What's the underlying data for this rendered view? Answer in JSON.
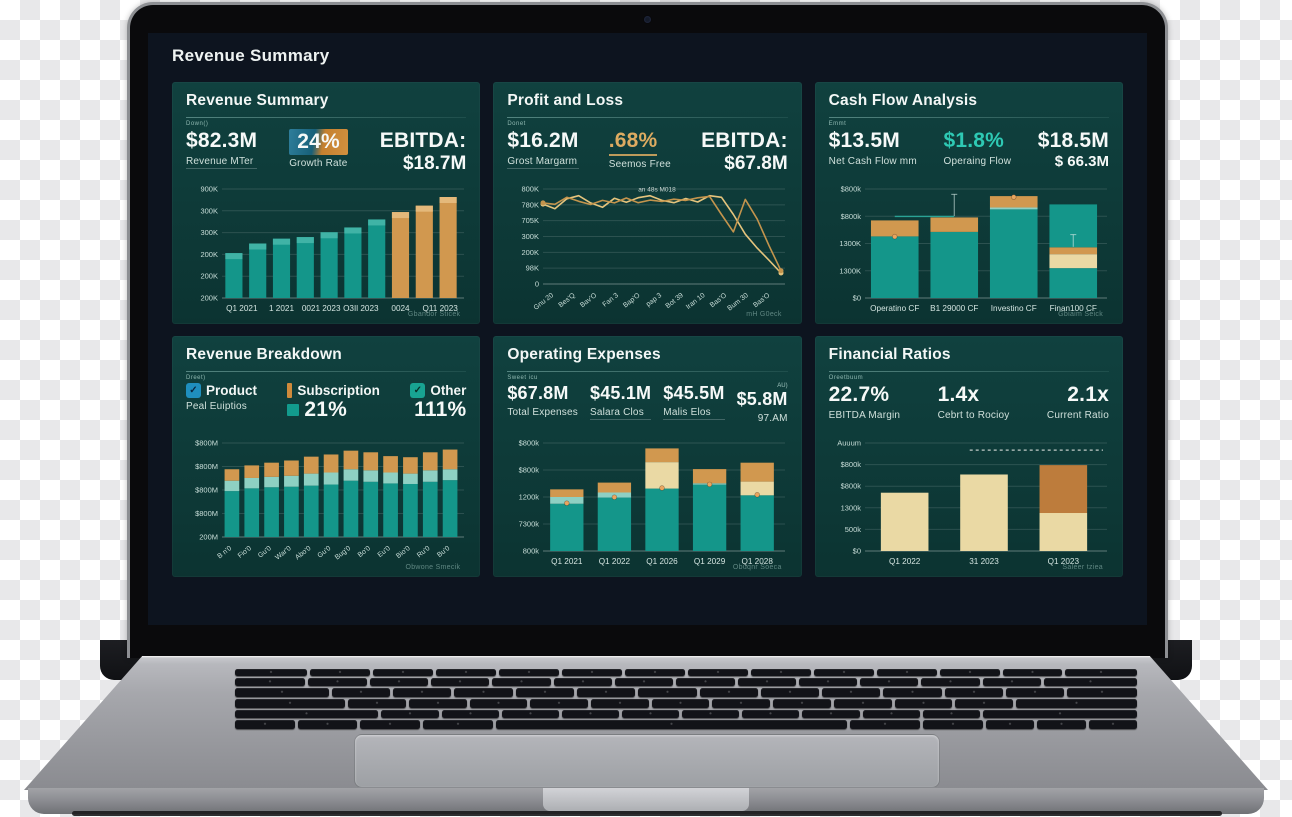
{
  "page": {
    "title": "Revenue Summary"
  },
  "colors": {
    "teal": "#14968a",
    "teal_light": "#8ed0c3",
    "orange": "#d1984f",
    "cream": "#ead9a4",
    "dark_orange": "#bd7c3c",
    "gold_line": "#e5c47d",
    "dark_gold_line": "#c3944d",
    "accent_teal": "#2ec9b4",
    "accent_gold": "#ddab61",
    "panel_bg": "#0d3836",
    "screen_bg": "#0d141f"
  },
  "panels": [
    {
      "title": "Revenue Summary",
      "tiny_label": "Down()",
      "watermark": "Gbandor Sticek",
      "metrics": [
        {
          "value": "$82.3M",
          "label": "Revenue MTer",
          "label_underline": true
        },
        {
          "value": "24%",
          "value_class": "badge",
          "label": "Growth Rate"
        },
        {
          "value": "EBITDA:",
          "value2": "$18.7M"
        }
      ],
      "chart": {
        "type": "bar",
        "ymax": 340,
        "yticks": [
          "900K",
          "300K",
          "300K",
          "200K",
          "200K",
          "200K"
        ],
        "xlabels": [
          "Q1 2021",
          "1 2021",
          "0021 2023",
          "O3Il 2023",
          "0024",
          "Q11 2023"
        ],
        "values": [
          140,
          170,
          185,
          190,
          205,
          220,
          245,
          268,
          288,
          315
        ],
        "bar_colors": [
          "teal",
          "teal",
          "teal",
          "teal",
          "teal",
          "teal",
          "teal",
          "orange",
          "orange",
          "orange"
        ]
      }
    },
    {
      "title": "Profit and Loss",
      "tiny_label": "Donet",
      "watermark": "mH G0eck",
      "metrics": [
        {
          "value": "$16.2M",
          "label": "Grost Margarm",
          "label_underline": true
        },
        {
          "value": ".68%",
          "value_class": "gold underl",
          "label": "Seemos Free"
        },
        {
          "value": "EBITDA:",
          "value2": "$67.8M"
        }
      ],
      "chart": {
        "type": "line",
        "ymax": 820,
        "xrot": true,
        "yticks": [
          "800K",
          "780K",
          "705K",
          "300K",
          "200K",
          "98K",
          "0"
        ],
        "xlabels": [
          "Gnu 20",
          "Bes'Q",
          "Bav'O",
          "Fan 3",
          "Bap'O",
          "pap 3",
          "Bot 39",
          "Iran 10",
          "Bas'O",
          "Bum 30",
          "Bas'O"
        ],
        "series": [
          {
            "color": "gold_line",
            "values": [
              690,
              650,
              735,
              762,
              700,
              662,
              740,
              705,
              745,
              762,
              722,
              702,
              738,
              708,
              762,
              748,
              600,
              430,
              310,
              205,
              95
            ]
          },
          {
            "color": "dark_gold_line",
            "values": [
              700,
              688,
              748,
              714,
              686,
              722,
              700,
              742,
              702,
              724,
              712,
              732,
              722,
              744,
              756,
              600,
              450,
              730,
              560,
              330,
              115
            ]
          }
        ],
        "annotation": {
          "text": "an 48s M018",
          "x": 0.4,
          "v": 800
        }
      }
    },
    {
      "title": "Cash Flow Analysis",
      "tiny_label": "Emmt",
      "watermark": "Gbiaim Seick",
      "metrics": [
        {
          "value": "$13.5M",
          "label": "Net Cash Flow mm"
        },
        {
          "value": "$1.8%",
          "value_class": "teal",
          "label": "Operaing Flow"
        },
        {
          "value": "$18.5M",
          "value2": "$ 66.3M",
          "value2_small": true
        }
      ],
      "chart": {
        "type": "stacked",
        "ymax": 920,
        "bw": 0.8,
        "yticks": [
          "$800k",
          "$800k",
          "1300K",
          "1300K",
          "$0"
        ],
        "xlabels": [
          "Operatino CF",
          "B1 29000 CF",
          "Investino CF",
          "Finan100 CF"
        ],
        "stacks": [
          [
            [
              "teal",
              520
            ],
            [
              "orange",
              135
            ]
          ],
          [
            [
              "teal",
              558
            ],
            [
              "orange",
              122
            ]
          ],
          [
            [
              "teal",
              748
            ],
            [
              "teal_light",
              16
            ],
            [
              "orange",
              96
            ]
          ],
          [
            [
              "teal",
              252
            ],
            [
              "cream",
              118
            ],
            [
              "orange",
              58
            ],
            [
              "teal",
              362
            ]
          ]
        ],
        "connector": {
          "from": 0,
          "to": 1,
          "v": 688
        },
        "stems": [
          [
            1,
            692,
            875
          ],
          [
            3,
            432,
            535
          ]
        ],
        "dots": [
          [
            0,
            518
          ],
          [
            2,
            852
          ]
        ]
      }
    },
    {
      "title": "Revenue Breakdown",
      "tiny_label": "Dreet)",
      "watermark": "Obwone Smecik",
      "metrics": [
        {
          "icon": "checkbox-blue",
          "title": "Product",
          "label": "Peal Euiptios"
        },
        {
          "icon": "bar-orange",
          "title": "Subscription",
          "value": "21%",
          "value_icon": "square-teal"
        },
        {
          "icon": "checkbox-teal",
          "title": "Other",
          "value": "111%"
        }
      ],
      "chart": {
        "type": "stacked",
        "ymax": 860,
        "bw": 0.74,
        "xrot": true,
        "yticks": [
          "$800M",
          "$800M",
          "$800M",
          "$800M",
          "200M"
        ],
        "xlabels": [
          "B n'0",
          "Fio'0",
          "Gu'0",
          "War'0",
          "Abo'0",
          "Gu'0",
          "Bug'0",
          "Bo'0",
          "Eu'0",
          "Bio'0",
          "Ru'0",
          "Bu'0"
        ],
        "stacks": [
          [
            [
              "teal",
              420
            ],
            [
              "teal_light",
              95
            ],
            [
              "orange",
              105
            ]
          ],
          [
            [
              "teal",
              445
            ],
            [
              "teal_light",
              95
            ],
            [
              "orange",
              115
            ]
          ],
          [
            [
              "teal",
              455
            ],
            [
              "teal_light",
              95
            ],
            [
              "orange",
              130
            ]
          ],
          [
            [
              "teal",
              460
            ],
            [
              "teal_light",
              100
            ],
            [
              "orange",
              140
            ]
          ],
          [
            [
              "teal",
              470
            ],
            [
              "teal_light",
              110
            ],
            [
              "orange",
              155
            ]
          ],
          [
            [
              "teal",
              480
            ],
            [
              "teal_light",
              110
            ],
            [
              "orange",
              165
            ]
          ],
          [
            [
              "teal",
              515
            ],
            [
              "teal_light",
              105
            ],
            [
              "orange",
              170
            ]
          ],
          [
            [
              "teal",
              505
            ],
            [
              "teal_light",
              105
            ],
            [
              "orange",
              165
            ]
          ],
          [
            [
              "teal",
              490
            ],
            [
              "teal_light",
              100
            ],
            [
              "orange",
              150
            ]
          ],
          [
            [
              "teal",
              485
            ],
            [
              "teal_light",
              95
            ],
            [
              "orange",
              150
            ]
          ],
          [
            [
              "teal",
              505
            ],
            [
              "teal_light",
              105
            ],
            [
              "orange",
              165
            ]
          ],
          [
            [
              "teal",
              520
            ],
            [
              "teal_light",
              100
            ],
            [
              "orange",
              180
            ]
          ]
        ]
      }
    },
    {
      "title": "Operating Expenses",
      "tiny_label": "Sweet icu",
      "watermark": "Obuqnr Soeca",
      "metrics": [
        {
          "value": "$67.8M",
          "label": "Total Expenses"
        },
        {
          "value": "$45.1M",
          "label": "Salara Clos",
          "label_underline": true
        },
        {
          "value": "$45.5M",
          "label": "Malis Elos",
          "label_underline": true
        },
        {
          "tiny_top": "AU)",
          "value": "$5.8M",
          "label": "97.AM"
        }
      ],
      "chart": {
        "type": "stacked",
        "ymax": 960,
        "bw": 0.7,
        "yticks": [
          "$800k",
          "$800k",
          "1200k",
          "7300k",
          "800k"
        ],
        "xlabels": [
          "Q1 2021",
          "Q1 2022",
          "Q1 2026",
          "Q1 2029",
          "Q1 2028"
        ],
        "stacks": [
          [
            [
              "teal",
              420
            ],
            [
              "teal_light",
              60
            ],
            [
              "orange",
              68
            ]
          ],
          [
            [
              "teal",
              475
            ],
            [
              "teal_light",
              45
            ],
            [
              "orange",
              88
            ]
          ],
          [
            [
              "teal",
              555
            ],
            [
              "cream",
              235
            ],
            [
              "orange",
              122
            ]
          ],
          [
            [
              "teal",
              590
            ],
            [
              "teal_light",
              12
            ],
            [
              "orange",
              126
            ]
          ],
          [
            [
              "teal",
              495
            ],
            [
              "cream",
              122
            ],
            [
              "orange",
              168
            ]
          ]
        ],
        "dots": [
          [
            0,
            425
          ],
          [
            1,
            478
          ],
          [
            2,
            560
          ],
          [
            3,
            592
          ],
          [
            4,
            500
          ]
        ]
      }
    },
    {
      "title": "Financial Ratios",
      "tiny_label": "Oreetbuum",
      "watermark": "Saleer tziea",
      "metrics": [
        {
          "value": "22.7%",
          "label": "EBITDA Margin"
        },
        {
          "value": "1.4x",
          "label": "Cebrt to Rocioy"
        },
        {
          "value": "2.1x",
          "label": "Current Ratio"
        }
      ],
      "chart": {
        "type": "stacked",
        "ymax": 830,
        "bw": 0.6,
        "yticks": [
          "Auuum",
          "$800k",
          "$800k",
          "1300k",
          "500k",
          "$0"
        ],
        "xlabels": [
          "Q1 2022",
          "31 2023",
          "Q1 2023"
        ],
        "stacks": [
          [
            [
              "cream",
              448
            ]
          ],
          [
            [
              "cream",
              588
            ]
          ],
          [
            [
              "cream",
              292
            ],
            [
              "dark_orange",
              368
            ]
          ]
        ],
        "dash": {
          "v": 775,
          "from": 0.44
        }
      }
    }
  ]
}
